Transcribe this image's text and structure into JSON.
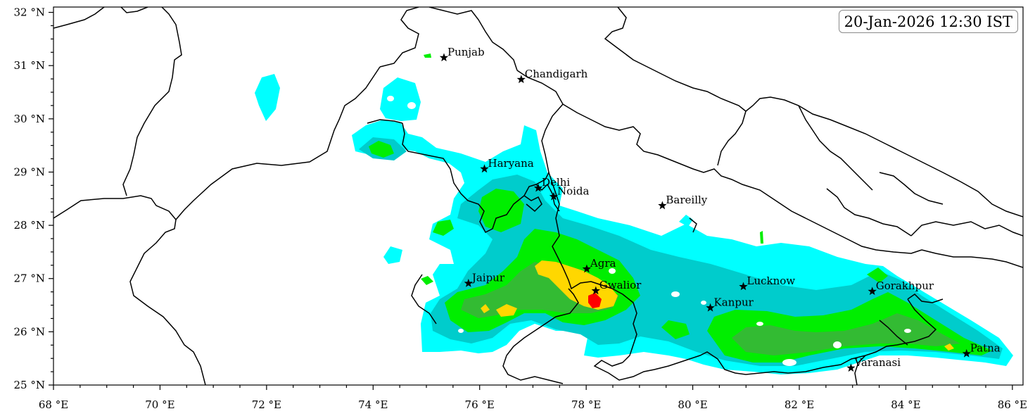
{
  "timestamp": "20-Jan-2026 12:30 IST",
  "axes": {
    "lon_ticks": [
      "68 °E",
      "70 °E",
      "72 °E",
      "74 °E",
      "76 °E",
      "78 °E",
      "80 °E",
      "82 °E",
      "84 °E",
      "86 °E"
    ],
    "lat_ticks": [
      "32 °N",
      "31 °N",
      "30 °N",
      "29 °N",
      "28 °N",
      "27 °N",
      "26 °N",
      "25 °N"
    ],
    "lon_range": [
      68,
      86.2
    ],
    "lat_range": [
      25,
      32.1
    ]
  },
  "legend_colors": {
    "cyan": "#00ffff",
    "teal": "#00cccc",
    "green": "#00ee00",
    "darkgreen": "#33bb33",
    "yellow": "#ffd700",
    "red": "#ff0000"
  },
  "cities": [
    {
      "name": "Punjab",
      "lon": 75.33,
      "lat": 31.15
    },
    {
      "name": "Chandigarh",
      "lon": 76.78,
      "lat": 30.74
    },
    {
      "name": "Haryana",
      "lon": 76.09,
      "lat": 29.06
    },
    {
      "name": "Delhi",
      "lon": 77.1,
      "lat": 28.7
    },
    {
      "name": "Noida",
      "lon": 77.39,
      "lat": 28.54
    },
    {
      "name": "Bareilly",
      "lon": 79.43,
      "lat": 28.37
    },
    {
      "name": "Agra",
      "lon": 78.01,
      "lat": 27.18
    },
    {
      "name": "Jaipur",
      "lon": 75.79,
      "lat": 26.91
    },
    {
      "name": "Gwalior",
      "lon": 78.18,
      "lat": 26.77
    },
    {
      "name": "Lucknow",
      "lon": 80.95,
      "lat": 26.85
    },
    {
      "name": "Gorakhpur",
      "lon": 83.37,
      "lat": 26.76
    },
    {
      "name": "Kanpur",
      "lon": 80.33,
      "lat": 26.45
    },
    {
      "name": "Patna",
      "lon": 85.14,
      "lat": 25.59
    },
    {
      "name": "Varanasi",
      "lon": 82.97,
      "lat": 25.32
    }
  ]
}
